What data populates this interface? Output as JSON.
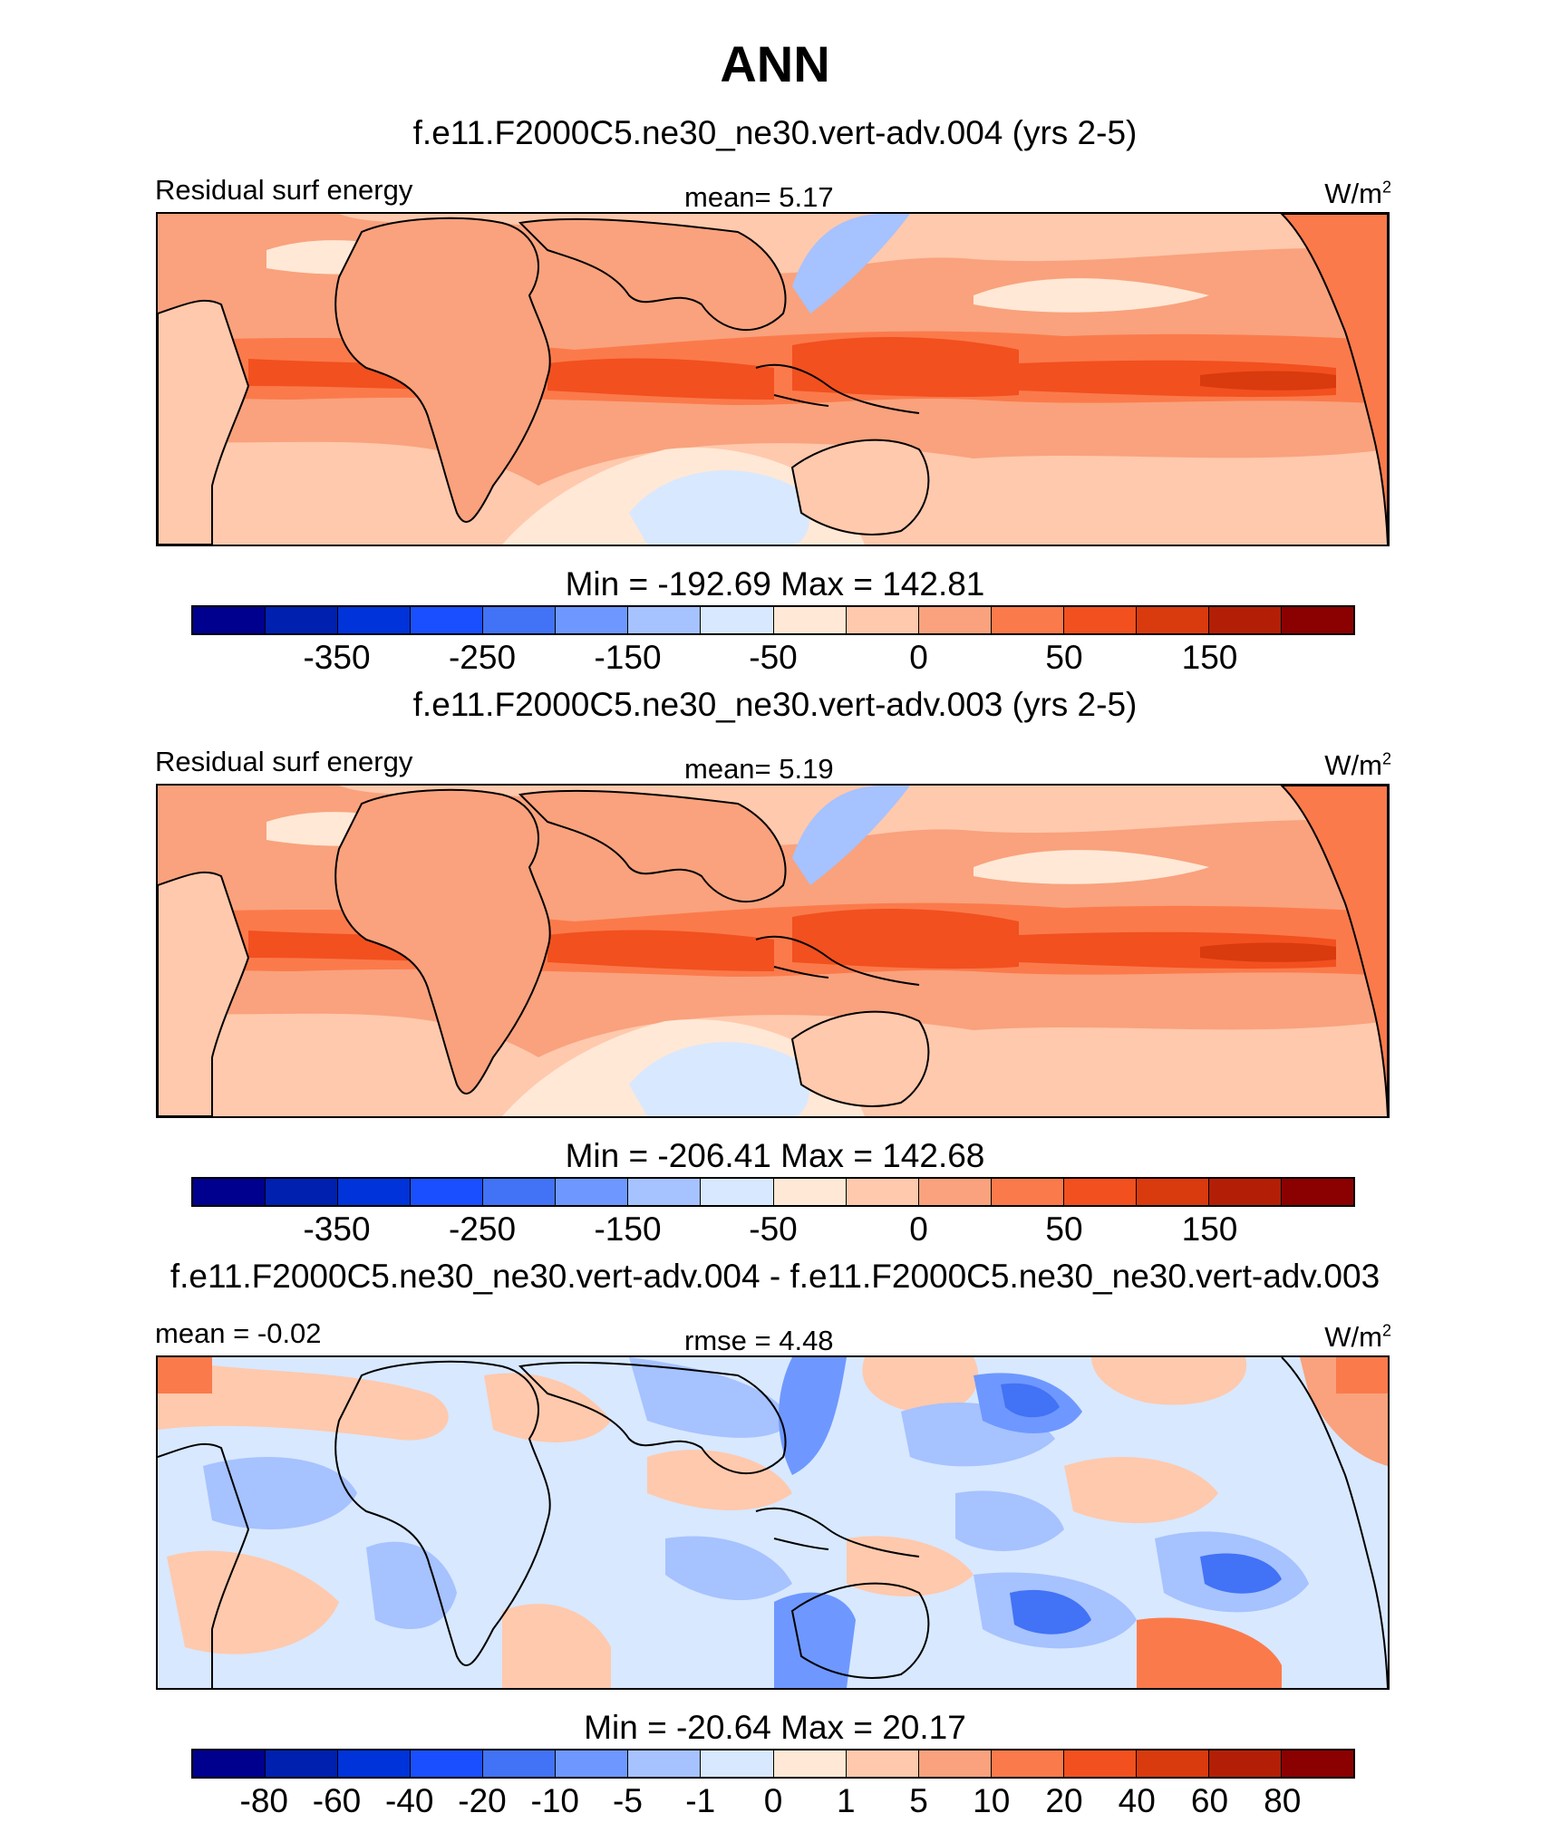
{
  "title": "ANN",
  "panels": [
    {
      "title": "f.e11.F2000C5.ne30_ne30.vert-adv.004 (yrs 2-5)",
      "left_label": "Residual surf energy",
      "center_label": "mean=   5.17",
      "units": "W/m",
      "units_sup": "2",
      "minmax": "Min = -192.69 Max = 142.81",
      "colorbar_colors": [
        "#00008f",
        "#0020b0",
        "#0033d9",
        "#1a4fff",
        "#4272f5",
        "#6e98ff",
        "#a6c2ff",
        "#d8e8ff",
        "#ffe8d6",
        "#ffc9ad",
        "#f9a27d",
        "#fb7a4b",
        "#f2501f",
        "#d93a0e",
        "#b31f06",
        "#8b0000"
      ],
      "colorbar_ticks": [
        "-350",
        "-250",
        "-150",
        "-50",
        "0",
        "50",
        "150"
      ]
    },
    {
      "title": "f.e11.F2000C5.ne30_ne30.vert-adv.003 (yrs 2-5)",
      "left_label": "Residual surf energy",
      "center_label": "mean=   5.19",
      "units": "W/m",
      "units_sup": "2",
      "minmax": "Min = -206.41 Max = 142.68",
      "colorbar_colors": [
        "#00008f",
        "#0020b0",
        "#0033d9",
        "#1a4fff",
        "#4272f5",
        "#6e98ff",
        "#a6c2ff",
        "#d8e8ff",
        "#ffe8d6",
        "#ffc9ad",
        "#f9a27d",
        "#fb7a4b",
        "#f2501f",
        "#d93a0e",
        "#b31f06",
        "#8b0000"
      ],
      "colorbar_ticks": [
        "-350",
        "-250",
        "-150",
        "-50",
        "0",
        "50",
        "150"
      ]
    },
    {
      "title": "f.e11.F2000C5.ne30_ne30.vert-adv.004 - f.e11.F2000C5.ne30_ne30.vert-adv.003",
      "left_label": "mean =  -0.02",
      "center_label": "rmse =   4.48",
      "units": "W/m",
      "units_sup": "2",
      "minmax": "Min = -20.64 Max =  20.17",
      "colorbar_colors": [
        "#00008f",
        "#0020b0",
        "#0033d9",
        "#1a4fff",
        "#4272f5",
        "#6e98ff",
        "#a6c2ff",
        "#d8e8ff",
        "#ffe8d6",
        "#ffc9ad",
        "#f9a27d",
        "#fb7a4b",
        "#f2501f",
        "#d93a0e",
        "#b31f06",
        "#8b0000"
      ],
      "colorbar_ticks": [
        "-80",
        "-60",
        "-40",
        "-20",
        "-10",
        "-5",
        "-1",
        "0",
        "1",
        "5",
        "10",
        "20",
        "40",
        "60",
        "80"
      ]
    }
  ]
}
